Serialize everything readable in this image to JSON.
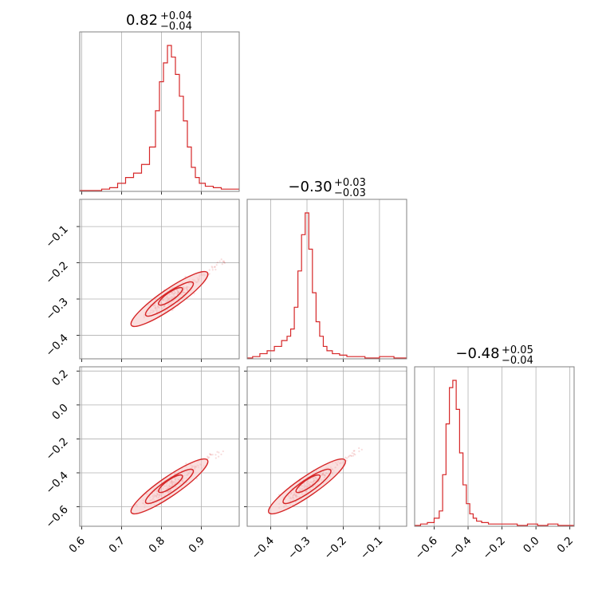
{
  "colors": {
    "line": "#d62728",
    "fill": "#f6c9c9",
    "grid": "#b0b0b0",
    "frame": "#808080"
  },
  "chart_data": {
    "type": "corner",
    "grid": true,
    "parameters": [
      {
        "median": 0.82,
        "err_plus": "+0.04",
        "err_minus": "−0.04",
        "title_main": "0.82",
        "range": [
          0.595,
          0.995
        ],
        "ticks": [
          0.6,
          0.7,
          0.8,
          0.9
        ],
        "tick_labels": [
          "0.6",
          "0.7",
          "0.8",
          "0.9"
        ]
      },
      {
        "median": -0.3,
        "err_plus": "+0.03",
        "err_minus": "−0.03",
        "title_main": "−0.30",
        "range": [
          -0.465,
          -0.025
        ],
        "ticks": [
          -0.4,
          -0.3,
          -0.2,
          -0.1
        ],
        "tick_labels": [
          "−0.4",
          "−0.3",
          "−0.2",
          "−0.1"
        ]
      },
      {
        "median": -0.48,
        "err_plus": "+0.05",
        "err_minus": "−0.04",
        "title_main": "−0.48",
        "range": [
          -0.715,
          0.225
        ],
        "ticks": [
          -0.6,
          -0.4,
          -0.2,
          0.0,
          0.2
        ],
        "tick_labels": [
          "−0.6",
          "−0.4",
          "−0.2",
          "0.0",
          "0.2"
        ]
      }
    ],
    "histograms": [
      {
        "param": 0,
        "bin_centers": [
          0.6,
          0.62,
          0.64,
          0.66,
          0.68,
          0.7,
          0.72,
          0.74,
          0.76,
          0.78,
          0.79,
          0.8,
          0.81,
          0.82,
          0.83,
          0.84,
          0.85,
          0.86,
          0.87,
          0.88,
          0.89,
          0.9,
          0.92,
          0.94,
          0.96,
          0.98
        ],
        "counts": [
          0,
          0,
          0,
          1,
          2,
          5,
          9,
          12,
          18,
          30,
          55,
          75,
          88,
          100,
          92,
          80,
          65,
          48,
          30,
          16,
          9,
          5,
          3,
          2,
          1,
          1
        ]
      },
      {
        "param": 1,
        "bin_centers": [
          -0.46,
          -0.44,
          -0.42,
          -0.4,
          -0.38,
          -0.36,
          -0.35,
          -0.34,
          -0.33,
          -0.32,
          -0.31,
          -0.3,
          -0.29,
          -0.28,
          -0.27,
          -0.26,
          -0.25,
          -0.24,
          -0.22,
          -0.2,
          -0.18,
          -0.16,
          -0.12,
          -0.08,
          -0.04
        ],
        "counts": [
          0,
          1,
          3,
          5,
          8,
          12,
          15,
          20,
          35,
          60,
          85,
          100,
          75,
          45,
          25,
          15,
          8,
          5,
          3,
          2,
          1,
          1,
          0,
          1,
          0
        ]
      },
      {
        "param": 2,
        "bin_centers": [
          -0.7,
          -0.66,
          -0.62,
          -0.58,
          -0.56,
          -0.54,
          -0.52,
          -0.5,
          -0.48,
          -0.46,
          -0.44,
          -0.42,
          -0.4,
          -0.38,
          -0.36,
          -0.34,
          -0.3,
          -0.26,
          -0.2,
          -0.14,
          -0.08,
          -0.02,
          0.04,
          0.1,
          0.16,
          0.2
        ],
        "counts": [
          0,
          1,
          2,
          5,
          10,
          35,
          70,
          95,
          100,
          80,
          50,
          28,
          15,
          8,
          5,
          3,
          2,
          1,
          1,
          1,
          0,
          1,
          0,
          1,
          0,
          0
        ]
      }
    ],
    "scatter_panels": [
      {
        "x_param": 0,
        "y_param": 1,
        "centroid": [
          0.82,
          -0.3
        ],
        "trend_slope": 1.0
      },
      {
        "x_param": 0,
        "y_param": 2,
        "centroid": [
          0.82,
          -0.48
        ],
        "trend_slope": 1.1
      },
      {
        "x_param": 1,
        "y_param": 2,
        "centroid": [
          -0.3,
          -0.48
        ],
        "trend_slope": 1.0
      }
    ]
  }
}
